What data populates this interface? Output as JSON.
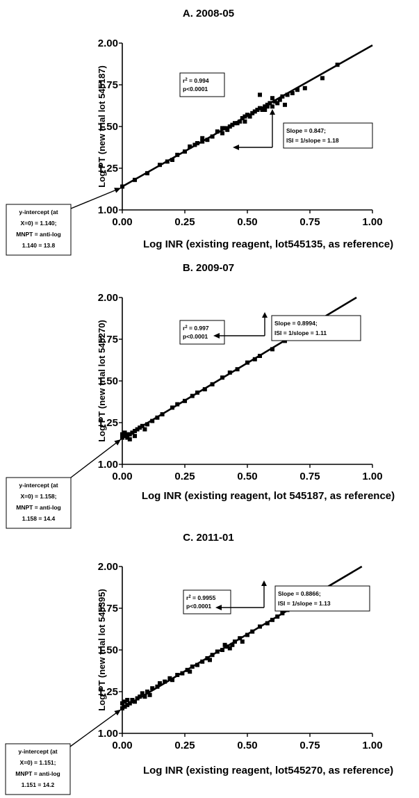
{
  "chart_data": [
    {
      "type": "scatter",
      "title": "A. 2008-05",
      "xlabel": "Log INR (existing reagent, lot545135, as reference)",
      "ylabel": "Log PT (new trial lot 545187)",
      "xlim": [
        0,
        1.0
      ],
      "ylim": [
        1.0,
        2.0
      ],
      "xticks": [
        "0.00",
        "0.25",
        "0.50",
        "0.75",
        "1.00"
      ],
      "yticks": [
        "1.00",
        "1.25",
        "1.50",
        "1.75",
        "2.00"
      ],
      "fit": {
        "intercept": 1.14,
        "slope": 0.847
      },
      "stats_box": [
        "r2 = 0.994",
        "p<0.0001"
      ],
      "slope_box": [
        "Slope = 0.847;",
        "ISI = 1/slope = 1.18"
      ],
      "intercept_box": [
        "y-intercept (at",
        "X=0) = 1.140;",
        "MNPT = anti-log",
        "1.140 = 13.8"
      ],
      "points": [
        [
          0.0,
          1.14
        ],
        [
          0.05,
          1.18
        ],
        [
          0.1,
          1.22
        ],
        [
          0.15,
          1.27
        ],
        [
          0.18,
          1.29
        ],
        [
          0.2,
          1.3
        ],
        [
          0.22,
          1.33
        ],
        [
          0.25,
          1.35
        ],
        [
          0.27,
          1.38
        ],
        [
          0.29,
          1.39
        ],
        [
          0.3,
          1.4
        ],
        [
          0.32,
          1.41
        ],
        [
          0.34,
          1.42
        ],
        [
          0.36,
          1.44
        ],
        [
          0.38,
          1.47
        ],
        [
          0.4,
          1.49
        ],
        [
          0.41,
          1.49
        ],
        [
          0.43,
          1.5
        ],
        [
          0.45,
          1.52
        ],
        [
          0.46,
          1.52
        ],
        [
          0.47,
          1.53
        ],
        [
          0.48,
          1.55
        ],
        [
          0.49,
          1.56
        ],
        [
          0.5,
          1.57
        ],
        [
          0.51,
          1.56
        ],
        [
          0.52,
          1.58
        ],
        [
          0.53,
          1.59
        ],
        [
          0.54,
          1.6
        ],
        [
          0.55,
          1.61
        ],
        [
          0.56,
          1.6
        ],
        [
          0.57,
          1.62
        ],
        [
          0.58,
          1.63
        ],
        [
          0.59,
          1.64
        ],
        [
          0.6,
          1.62
        ],
        [
          0.61,
          1.65
        ],
        [
          0.62,
          1.64
        ],
        [
          0.63,
          1.66
        ],
        [
          0.64,
          1.68
        ],
        [
          0.66,
          1.69
        ],
        [
          0.68,
          1.7
        ],
        [
          0.7,
          1.72
        ],
        [
          0.73,
          1.73
        ],
        [
          0.8,
          1.79
        ],
        [
          0.86,
          1.87
        ],
        [
          0.55,
          1.69
        ],
        [
          0.4,
          1.46
        ],
        [
          0.32,
          1.43
        ],
        [
          0.49,
          1.53
        ],
        [
          0.44,
          1.51
        ],
        [
          0.57,
          1.6
        ],
        [
          0.6,
          1.67
        ],
        [
          0.65,
          1.63
        ],
        [
          0.42,
          1.48
        ],
        [
          0.58,
          1.62
        ]
      ]
    },
    {
      "type": "scatter",
      "title": "B. 2009-07",
      "xlabel": "Log INR (existing reagent, lot 545187, as reference)",
      "ylabel": "Log PT (new trial lot 545270)",
      "xlim": [
        0,
        1.0
      ],
      "ylim": [
        1.0,
        2.0
      ],
      "xticks": [
        "0.00",
        "0.25",
        "0.50",
        "0.75",
        "1.00"
      ],
      "yticks": [
        "1.00",
        "1.25",
        "1.50",
        "1.75",
        "2.00"
      ],
      "fit": {
        "intercept": 1.158,
        "slope": 0.8994
      },
      "stats_box": [
        "r2 = 0.997",
        "p<0.0001"
      ],
      "slope_box": [
        "Slope = 0.8994;",
        "ISI = 1/slope = 1.11"
      ],
      "intercept_box": [
        "y-intercept (at",
        "X=0) = 1.158;",
        "MNPT = anti-log",
        "1.158 = 14.4"
      ],
      "points": [
        [
          0.0,
          1.16
        ],
        [
          0.0,
          1.18
        ],
        [
          0.01,
          1.17
        ],
        [
          0.01,
          1.19
        ],
        [
          0.02,
          1.16
        ],
        [
          0.02,
          1.18
        ],
        [
          0.03,
          1.18
        ],
        [
          0.04,
          1.19
        ],
        [
          0.05,
          1.2
        ],
        [
          0.06,
          1.21
        ],
        [
          0.07,
          1.22
        ],
        [
          0.08,
          1.23
        ],
        [
          0.1,
          1.24
        ],
        [
          0.12,
          1.26
        ],
        [
          0.14,
          1.28
        ],
        [
          0.16,
          1.3
        ],
        [
          0.2,
          1.34
        ],
        [
          0.22,
          1.36
        ],
        [
          0.25,
          1.38
        ],
        [
          0.28,
          1.41
        ],
        [
          0.3,
          1.43
        ],
        [
          0.33,
          1.45
        ],
        [
          0.36,
          1.48
        ],
        [
          0.4,
          1.52
        ],
        [
          0.43,
          1.55
        ],
        [
          0.46,
          1.57
        ],
        [
          0.5,
          1.61
        ],
        [
          0.53,
          1.63
        ],
        [
          0.55,
          1.65
        ],
        [
          0.6,
          1.69
        ],
        [
          0.65,
          1.74
        ],
        [
          0.7,
          1.78
        ],
        [
          0.73,
          1.83
        ],
        [
          0.03,
          1.15
        ],
        [
          0.05,
          1.17
        ],
        [
          0.09,
          1.21
        ]
      ]
    },
    {
      "type": "scatter",
      "title": "C. 2011-01",
      "xlabel": "Log INR (existing reagent, lot545270, as reference)",
      "ylabel": "Log PT (new trial lot 545395)",
      "xlim": [
        0,
        1.0
      ],
      "ylim": [
        1.0,
        2.0
      ],
      "xticks": [
        "0.00",
        "0.25",
        "0.50",
        "0.75",
        "1.00"
      ],
      "yticks": [
        "1.00",
        "1.25",
        "1.50",
        "1.75",
        "2.00"
      ],
      "fit": {
        "intercept": 1.151,
        "slope": 0.8866
      },
      "stats_box": [
        "r2 = 0.9955",
        "p<0.0001"
      ],
      "slope_box": [
        "Slope = 0.8866;",
        "ISI = 1/slope = 1.13"
      ],
      "intercept_box": [
        "y-intercept (at",
        "X=0) = 1.151;",
        "MNPT = anti-log",
        "1.151 = 14.2"
      ],
      "points": [
        [
          0.0,
          1.15
        ],
        [
          0.0,
          1.18
        ],
        [
          0.01,
          1.16
        ],
        [
          0.01,
          1.19
        ],
        [
          0.02,
          1.17
        ],
        [
          0.02,
          1.2
        ],
        [
          0.03,
          1.18
        ],
        [
          0.04,
          1.2
        ],
        [
          0.05,
          1.19
        ],
        [
          0.06,
          1.21
        ],
        [
          0.07,
          1.22
        ],
        [
          0.08,
          1.24
        ],
        [
          0.1,
          1.25
        ],
        [
          0.11,
          1.23
        ],
        [
          0.12,
          1.27
        ],
        [
          0.14,
          1.28
        ],
        [
          0.15,
          1.3
        ],
        [
          0.17,
          1.31
        ],
        [
          0.19,
          1.33
        ],
        [
          0.2,
          1.32
        ],
        [
          0.22,
          1.35
        ],
        [
          0.24,
          1.36
        ],
        [
          0.26,
          1.38
        ],
        [
          0.28,
          1.4
        ],
        [
          0.3,
          1.41
        ],
        [
          0.32,
          1.43
        ],
        [
          0.34,
          1.45
        ],
        [
          0.36,
          1.47
        ],
        [
          0.38,
          1.49
        ],
        [
          0.4,
          1.5
        ],
        [
          0.42,
          1.52
        ],
        [
          0.44,
          1.53
        ],
        [
          0.45,
          1.55
        ],
        [
          0.47,
          1.57
        ],
        [
          0.5,
          1.59
        ],
        [
          0.52,
          1.61
        ],
        [
          0.55,
          1.64
        ],
        [
          0.58,
          1.66
        ],
        [
          0.6,
          1.68
        ],
        [
          0.62,
          1.7
        ],
        [
          0.64,
          1.72
        ],
        [
          0.66,
          1.74
        ],
        [
          0.7,
          1.77
        ],
        [
          0.73,
          1.8
        ],
        [
          0.77,
          1.86
        ],
        [
          0.41,
          1.53
        ],
        [
          0.43,
          1.51
        ],
        [
          0.48,
          1.55
        ],
        [
          0.35,
          1.44
        ],
        [
          0.27,
          1.37
        ],
        [
          0.09,
          1.22
        ]
      ]
    }
  ]
}
